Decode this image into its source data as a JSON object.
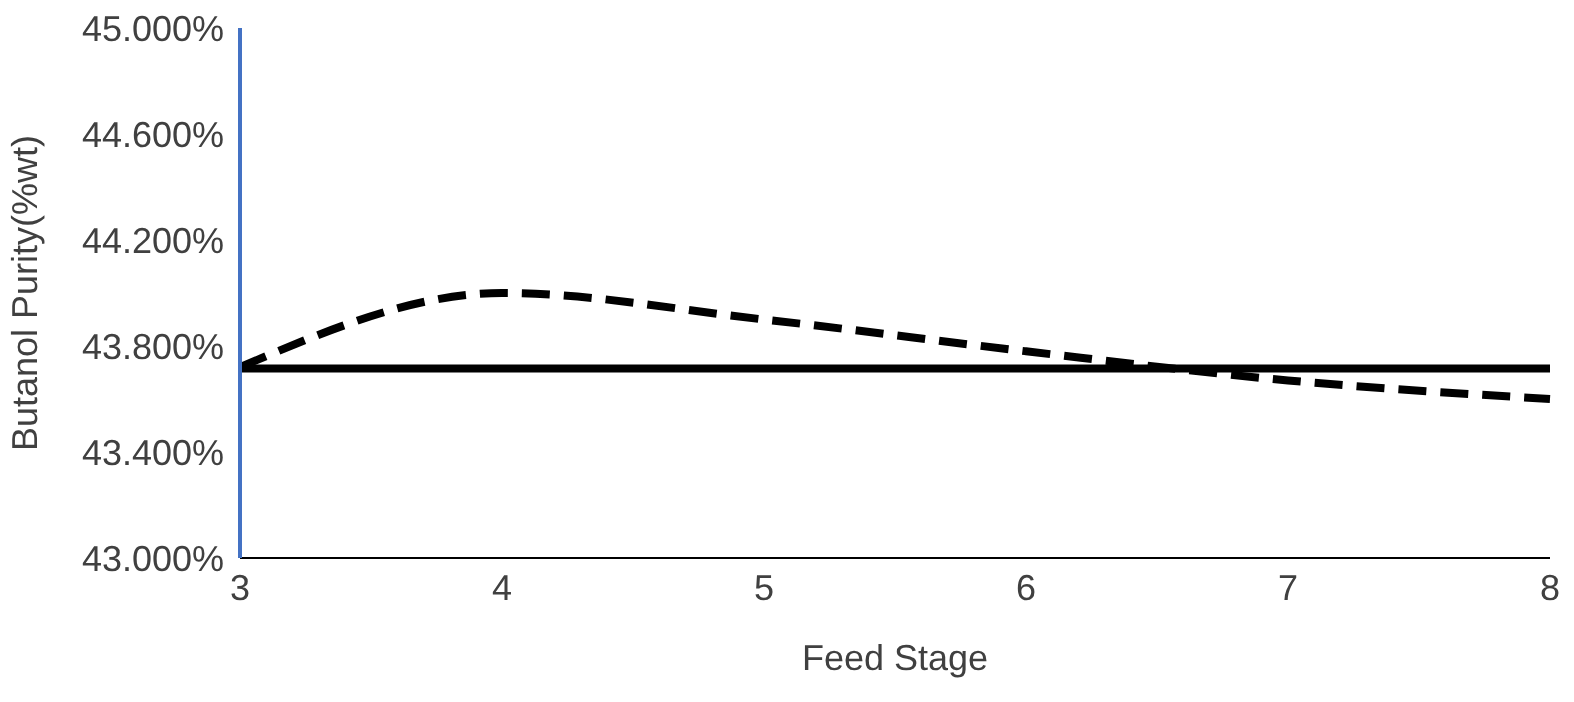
{
  "chart_data": {
    "type": "line",
    "xlabel": "Feed Stage",
    "ylabel": "Butanol Purity(%wt)",
    "categories": [
      "3",
      "4",
      "5",
      "6",
      "7",
      "8"
    ],
    "series": [
      {
        "color": "#000000",
        "line_style": "dashed",
        "values": [
          43.72,
          44.0,
          43.9,
          43.78,
          43.67,
          43.6
        ]
      },
      {
        "color": "#000000",
        "line_style": "solid",
        "values": [
          43.715,
          43.715,
          43.715,
          43.715,
          43.715,
          43.715
        ]
      }
    ],
    "ylim": [
      43,
      45
    ],
    "yticks": [
      {
        "value": 43,
        "label": "43.000%"
      },
      {
        "value": 43.4,
        "label": "43.400%"
      },
      {
        "value": 43.8,
        "label": "43.800%"
      },
      {
        "value": 44.2,
        "label": "44.200%"
      },
      {
        "value": 44.6,
        "label": "44.600%"
      },
      {
        "value": 45,
        "label": "45.000%"
      }
    ],
    "grid": false,
    "marker": "none",
    "legend": false
  }
}
